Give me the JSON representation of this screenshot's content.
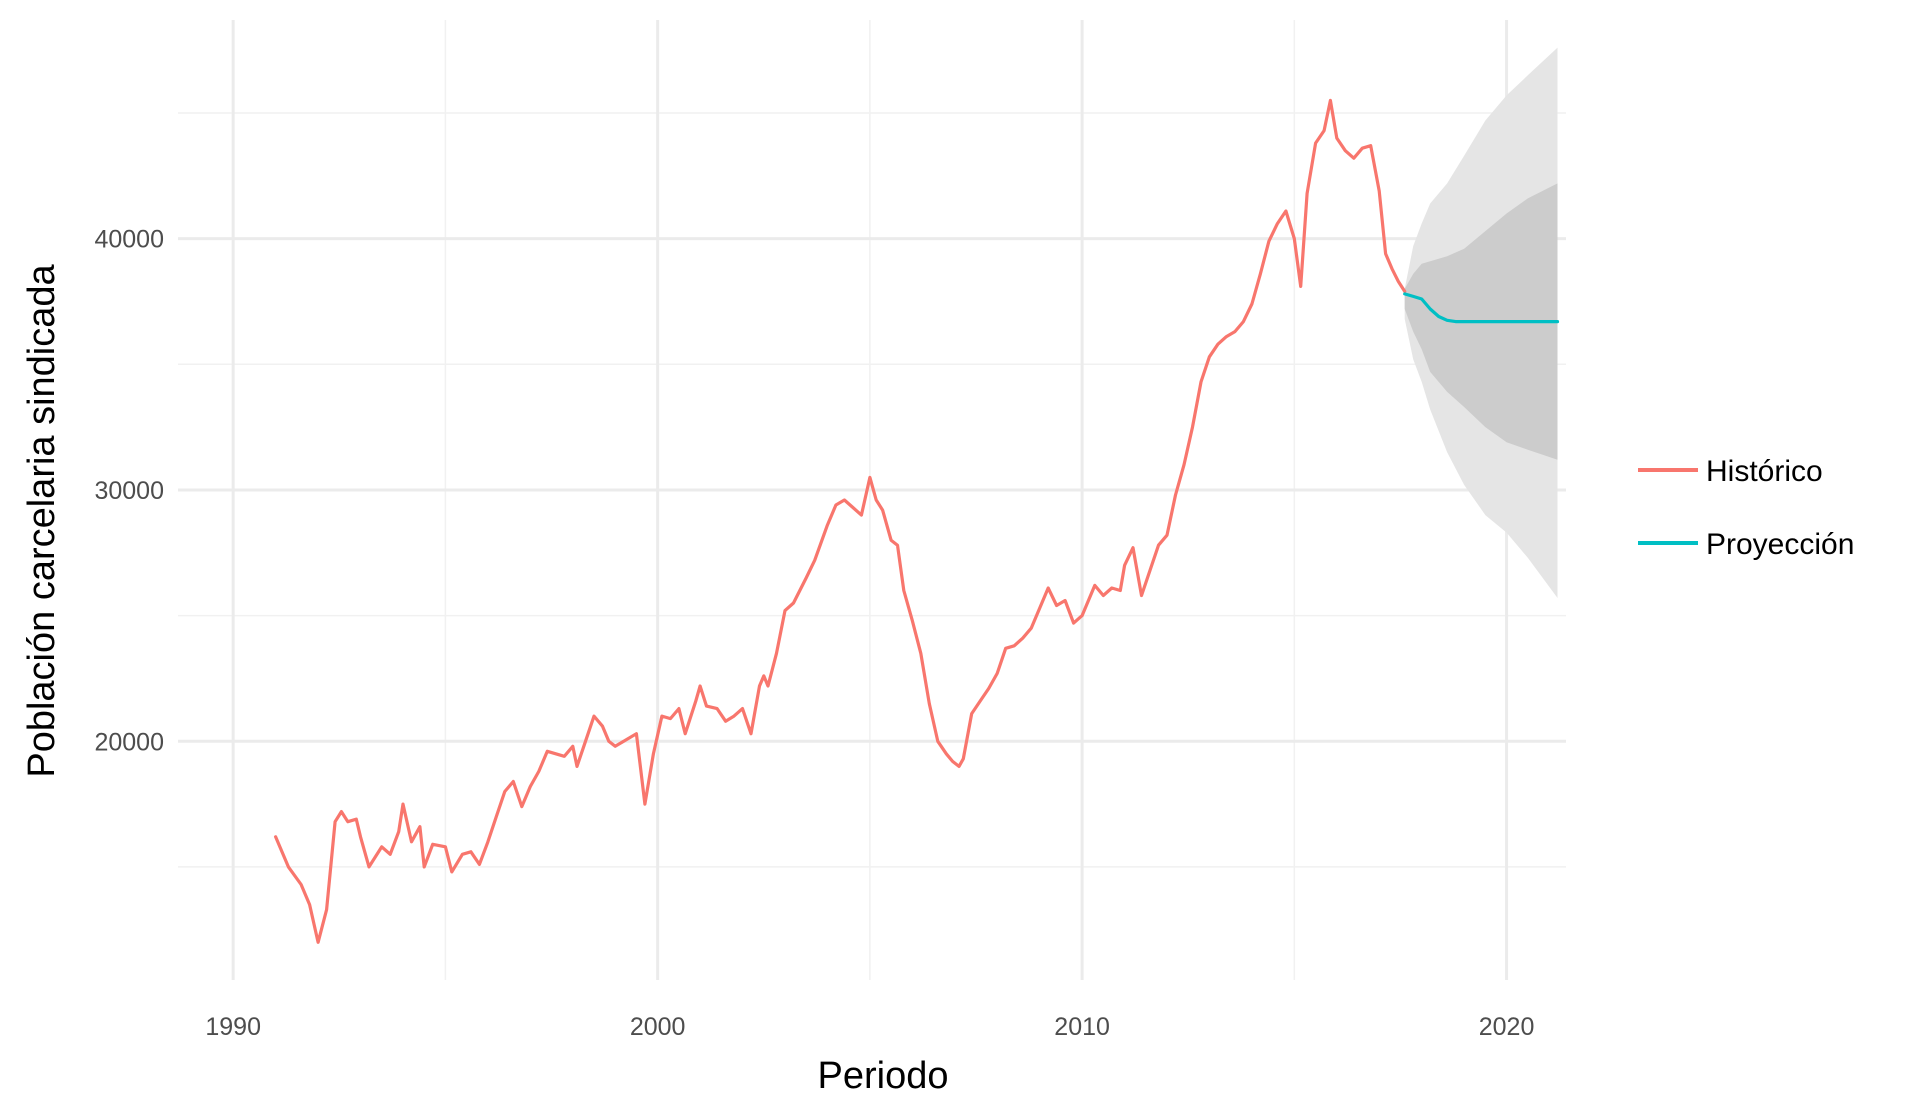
{
  "chart_data": {
    "type": "line",
    "title": "",
    "xlabel": "Periodo",
    "ylabel": "Población carcelaria sindicada",
    "xlim": [
      1988.7,
      2021.4
    ],
    "ylim": [
      10500,
      48700
    ],
    "x_ticks": [
      1990,
      2000,
      2010,
      2020
    ],
    "x_tick_labels": [
      "1990",
      "2000",
      "2010",
      "2020"
    ],
    "y_ticks": [
      20000,
      30000,
      40000
    ],
    "y_tick_labels": [
      "20000",
      "30000",
      "40000"
    ],
    "grid": true,
    "legend_position": "right",
    "series": [
      {
        "name": "Histórico",
        "color": "#F8766D",
        "points": [
          [
            1991.0,
            16200
          ],
          [
            1991.3,
            15000
          ],
          [
            1991.6,
            14300
          ],
          [
            1991.8,
            13500
          ],
          [
            1992.0,
            12000
          ],
          [
            1992.2,
            13300
          ],
          [
            1992.4,
            16800
          ],
          [
            1992.55,
            17200
          ],
          [
            1992.7,
            16800
          ],
          [
            1992.9,
            16900
          ],
          [
            1993.0,
            16200
          ],
          [
            1993.2,
            15000
          ],
          [
            1993.5,
            15800
          ],
          [
            1993.7,
            15500
          ],
          [
            1993.9,
            16400
          ],
          [
            1994.0,
            17500
          ],
          [
            1994.2,
            16000
          ],
          [
            1994.4,
            16600
          ],
          [
            1994.5,
            15000
          ],
          [
            1994.7,
            15900
          ],
          [
            1995.0,
            15800
          ],
          [
            1995.15,
            14800
          ],
          [
            1995.4,
            15500
          ],
          [
            1995.6,
            15600
          ],
          [
            1995.8,
            15100
          ],
          [
            1996.0,
            16000
          ],
          [
            1996.2,
            17000
          ],
          [
            1996.4,
            18000
          ],
          [
            1996.6,
            18400
          ],
          [
            1996.8,
            17400
          ],
          [
            1997.0,
            18200
          ],
          [
            1997.2,
            18800
          ],
          [
            1997.4,
            19600
          ],
          [
            1997.6,
            19500
          ],
          [
            1997.8,
            19400
          ],
          [
            1998.0,
            19800
          ],
          [
            1998.1,
            19000
          ],
          [
            1998.3,
            20000
          ],
          [
            1998.5,
            21000
          ],
          [
            1998.7,
            20600
          ],
          [
            1998.85,
            20000
          ],
          [
            1999.0,
            19800
          ],
          [
            1999.2,
            20000
          ],
          [
            1999.5,
            20300
          ],
          [
            1999.7,
            17500
          ],
          [
            1999.9,
            19500
          ],
          [
            2000.1,
            21000
          ],
          [
            2000.3,
            20900
          ],
          [
            2000.5,
            21300
          ],
          [
            2000.65,
            20300
          ],
          [
            2000.9,
            21600
          ],
          [
            2001.0,
            22200
          ],
          [
            2001.15,
            21400
          ],
          [
            2001.4,
            21300
          ],
          [
            2001.6,
            20800
          ],
          [
            2001.8,
            21000
          ],
          [
            2002.0,
            21300
          ],
          [
            2002.2,
            20300
          ],
          [
            2002.4,
            22200
          ],
          [
            2002.5,
            22600
          ],
          [
            2002.6,
            22200
          ],
          [
            2002.8,
            23500
          ],
          [
            2003.0,
            25200
          ],
          [
            2003.2,
            25500
          ],
          [
            2003.5,
            26500
          ],
          [
            2003.7,
            27200
          ],
          [
            2004.0,
            28600
          ],
          [
            2004.2,
            29400
          ],
          [
            2004.4,
            29600
          ],
          [
            2004.6,
            29300
          ],
          [
            2004.8,
            29000
          ],
          [
            2005.0,
            30500
          ],
          [
            2005.15,
            29600
          ],
          [
            2005.3,
            29200
          ],
          [
            2005.5,
            28000
          ],
          [
            2005.65,
            27800
          ],
          [
            2005.8,
            26000
          ],
          [
            2006.0,
            24800
          ],
          [
            2006.2,
            23500
          ],
          [
            2006.4,
            21500
          ],
          [
            2006.6,
            20000
          ],
          [
            2006.8,
            19500
          ],
          [
            2006.95,
            19200
          ],
          [
            2007.1,
            19000
          ],
          [
            2007.2,
            19300
          ],
          [
            2007.4,
            21100
          ],
          [
            2007.6,
            21600
          ],
          [
            2007.8,
            22100
          ],
          [
            2008.0,
            22700
          ],
          [
            2008.2,
            23700
          ],
          [
            2008.4,
            23800
          ],
          [
            2008.6,
            24100
          ],
          [
            2008.8,
            24500
          ],
          [
            2009.0,
            25300
          ],
          [
            2009.2,
            26100
          ],
          [
            2009.4,
            25400
          ],
          [
            2009.6,
            25600
          ],
          [
            2009.8,
            24700
          ],
          [
            2010.0,
            25000
          ],
          [
            2010.3,
            26200
          ],
          [
            2010.5,
            25800
          ],
          [
            2010.7,
            26100
          ],
          [
            2010.9,
            26000
          ],
          [
            2011.0,
            27000
          ],
          [
            2011.2,
            27700
          ],
          [
            2011.4,
            25800
          ],
          [
            2011.6,
            26800
          ],
          [
            2011.8,
            27800
          ],
          [
            2012.0,
            28200
          ],
          [
            2012.2,
            29800
          ],
          [
            2012.4,
            31000
          ],
          [
            2012.6,
            32500
          ],
          [
            2012.8,
            34300
          ],
          [
            2013.0,
            35300
          ],
          [
            2013.2,
            35800
          ],
          [
            2013.4,
            36100
          ],
          [
            2013.6,
            36300
          ],
          [
            2013.8,
            36700
          ],
          [
            2014.0,
            37400
          ],
          [
            2014.2,
            38600
          ],
          [
            2014.4,
            39900
          ],
          [
            2014.6,
            40600
          ],
          [
            2014.8,
            41100
          ],
          [
            2015.0,
            40000
          ],
          [
            2015.15,
            38100
          ],
          [
            2015.3,
            41800
          ],
          [
            2015.5,
            43800
          ],
          [
            2015.7,
            44300
          ],
          [
            2015.85,
            45500
          ],
          [
            2016.0,
            44000
          ],
          [
            2016.2,
            43500
          ],
          [
            2016.4,
            43200
          ],
          [
            2016.6,
            43600
          ],
          [
            2016.8,
            43700
          ],
          [
            2017.0,
            41900
          ],
          [
            2017.15,
            39400
          ],
          [
            2017.3,
            38800
          ],
          [
            2017.45,
            38300
          ],
          [
            2017.6,
            37900
          ]
        ]
      },
      {
        "name": "Proyección",
        "color": "#00BFC4",
        "points": [
          [
            2017.6,
            37800
          ],
          [
            2017.8,
            37700
          ],
          [
            2018.0,
            37600
          ],
          [
            2018.2,
            37200
          ],
          [
            2018.4,
            36900
          ],
          [
            2018.6,
            36750
          ],
          [
            2018.8,
            36700
          ],
          [
            2019.0,
            36700
          ],
          [
            2019.5,
            36700
          ],
          [
            2020.0,
            36700
          ],
          [
            2020.5,
            36700
          ],
          [
            2021.0,
            36700
          ],
          [
            2021.2,
            36700
          ]
        ]
      }
    ],
    "bands": [
      {
        "level": "outer",
        "color": "#e5e5e5",
        "points": [
          [
            2017.6,
            38000,
            36800
          ],
          [
            2017.8,
            39700,
            35200
          ],
          [
            2018.0,
            40600,
            34300
          ],
          [
            2018.2,
            41400,
            33200
          ],
          [
            2018.6,
            42200,
            31500
          ],
          [
            2019.0,
            43300,
            30200
          ],
          [
            2019.5,
            44700,
            29000
          ],
          [
            2020.0,
            45700,
            28300
          ],
          [
            2020.5,
            46500,
            27300
          ],
          [
            2021.2,
            47600,
            25700
          ]
        ]
      },
      {
        "level": "inner",
        "color": "#cccccc",
        "points": [
          [
            2017.6,
            38000,
            37200
          ],
          [
            2017.8,
            38600,
            36300
          ],
          [
            2018.0,
            39000,
            35600
          ],
          [
            2018.2,
            39100,
            34700
          ],
          [
            2018.6,
            39300,
            33900
          ],
          [
            2019.0,
            39600,
            33300
          ],
          [
            2019.5,
            40300,
            32500
          ],
          [
            2020.0,
            41000,
            31900
          ],
          [
            2020.5,
            41600,
            31600
          ],
          [
            2021.2,
            42200,
            31200
          ]
        ]
      }
    ]
  }
}
